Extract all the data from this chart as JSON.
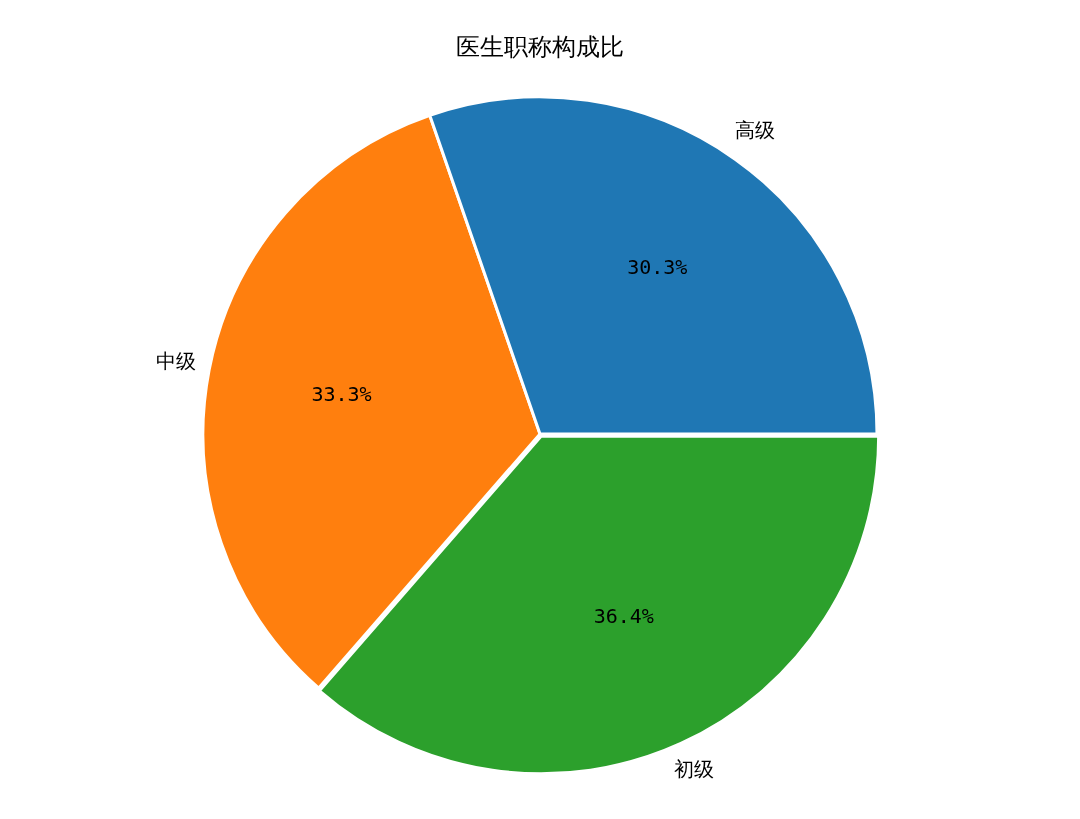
{
  "chart_data": {
    "type": "pie",
    "title": "医生职称构成比",
    "categories": [
      "高级",
      "中级",
      "初级"
    ],
    "values": [
      30.3,
      33.3,
      36.4
    ],
    "colors": [
      "#1f77b4",
      "#ff7f0e",
      "#2ca02c"
    ],
    "value_labels": [
      "30.3%",
      "33.3%",
      "36.4%"
    ],
    "legend": false
  }
}
